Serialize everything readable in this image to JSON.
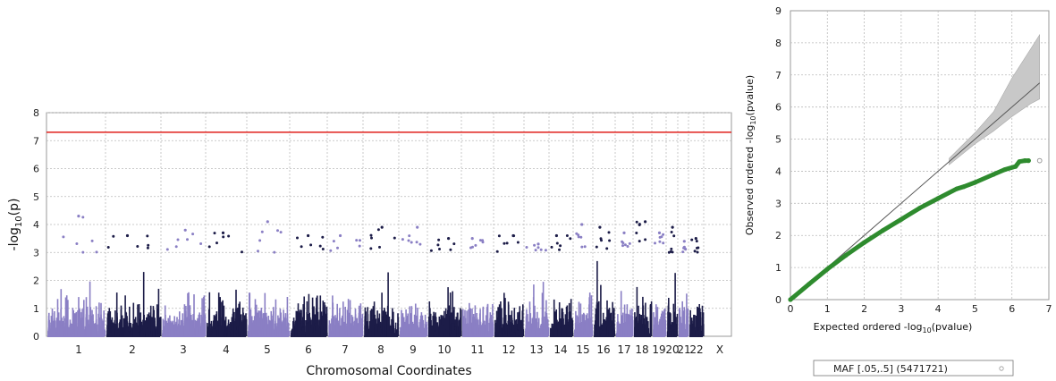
{
  "chart_data": [
    {
      "type": "scatter",
      "subtype": "manhattan",
      "xlabel": "Chromosomal Coordinates",
      "ylabel": "-log10(p)",
      "ylim": [
        0,
        8
      ],
      "y_ticks": [
        0,
        1,
        2,
        3,
        4,
        5,
        6,
        7,
        8
      ],
      "grid": true,
      "significance_line": 7.3,
      "significance_color": "#e0201c",
      "colors": {
        "odd": "#8a7fc4",
        "even": "#1c1c48"
      },
      "chromosomes": [
        {
          "label": "1",
          "peak": 4.3
        },
        {
          "label": "2",
          "peak": 3.6
        },
        {
          "label": "3",
          "peak": 3.8
        },
        {
          "label": "4",
          "peak": 3.7
        },
        {
          "label": "5",
          "peak": 4.1
        },
        {
          "label": "6",
          "peak": 3.6
        },
        {
          "label": "7",
          "peak": 3.6
        },
        {
          "label": "8",
          "peak": 3.9
        },
        {
          "label": "9",
          "peak": 3.9
        },
        {
          "label": "10",
          "peak": 3.5
        },
        {
          "label": "11",
          "peak": 3.5
        },
        {
          "label": "12",
          "peak": 3.6
        },
        {
          "label": "13",
          "peak": 3.3
        },
        {
          "label": "14",
          "peak": 3.6
        },
        {
          "label": "15",
          "peak": 4.0
        },
        {
          "label": "16",
          "peak": 3.9
        },
        {
          "label": "17",
          "peak": 3.7
        },
        {
          "label": "18",
          "peak": 4.1
        },
        {
          "label": "19",
          "peak": 3.7
        },
        {
          "label": "20",
          "peak": 3.9
        },
        {
          "label": "21",
          "peak": 3.4
        },
        {
          "label": "22",
          "peak": 3.5
        },
        {
          "label": "X",
          "peak": null
        }
      ]
    },
    {
      "type": "scatter",
      "subtype": "qq",
      "xlabel": "Expected ordered -log10(pvalue)",
      "ylabel": "Observed ordered -log10(pvalue)",
      "xlim": [
        0,
        7
      ],
      "ylim": [
        0,
        9
      ],
      "x_ticks": [
        0,
        1,
        2,
        3,
        4,
        5,
        6,
        7
      ],
      "y_ticks": [
        0,
        1,
        2,
        3,
        4,
        5,
        6,
        7,
        8,
        9
      ],
      "grid": true,
      "series_color": "#2e8b2e",
      "points": [
        [
          0,
          0
        ],
        [
          0.5,
          0.48
        ],
        [
          1,
          0.95
        ],
        [
          1.5,
          1.38
        ],
        [
          2,
          1.78
        ],
        [
          2.5,
          2.15
        ],
        [
          3,
          2.5
        ],
        [
          3.5,
          2.85
        ],
        [
          4,
          3.15
        ],
        [
          4.5,
          3.45
        ],
        [
          4.7,
          3.52
        ],
        [
          5,
          3.65
        ],
        [
          5.5,
          3.9
        ],
        [
          5.8,
          4.05
        ],
        [
          6.1,
          4.15
        ],
        [
          6.2,
          4.3
        ],
        [
          6.35,
          4.33
        ],
        [
          6.45,
          4.33
        ]
      ],
      "outlier": [
        6.75,
        4.33
      ],
      "ci_band": [
        [
          4.3,
          4.2,
          4.4
        ],
        [
          5,
          4.85,
          5.2
        ],
        [
          5.5,
          5.25,
          5.85
        ],
        [
          6,
          5.7,
          6.9
        ],
        [
          6.5,
          6.1,
          7.8
        ],
        [
          6.75,
          6.25,
          8.25
        ]
      ],
      "legend": "MAF [.05,.5] (5471721)"
    }
  ]
}
